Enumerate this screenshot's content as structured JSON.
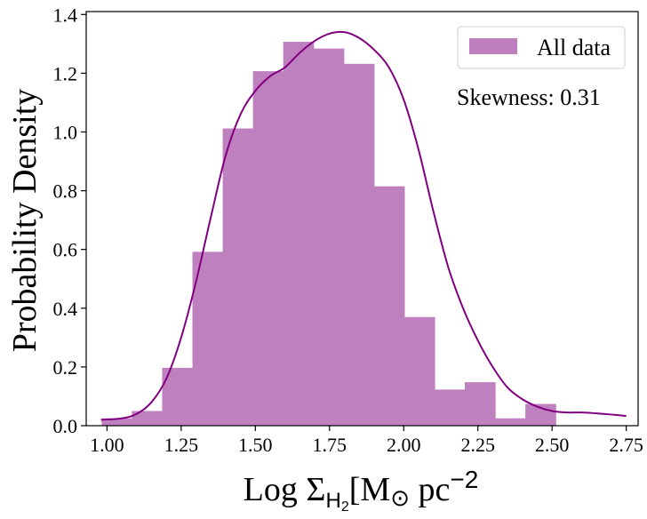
{
  "chart_data": {
    "type": "bar",
    "subtype": "histogram-with-kde",
    "xlabel": "Log Σ",
    "xlabel_sub": "H",
    "xlabel_subsub": "2",
    "xlabel_bracket_open": "[M",
    "xlabel_sun": "⊙",
    "xlabel_unit": " pc",
    "xlabel_exp": "−2",
    "xlabel_bracket_close": "]",
    "ylabel": "Probability Density",
    "xlim": [
      0.93,
      2.79
    ],
    "ylim": [
      0.0,
      1.41
    ],
    "x_ticks": [
      1.0,
      1.25,
      1.5,
      1.75,
      2.0,
      2.25,
      2.5,
      2.75
    ],
    "x_tick_labels": [
      "1.00",
      "1.25",
      "1.50",
      "1.75",
      "2.00",
      "2.25",
      "2.50",
      "2.75"
    ],
    "y_ticks": [
      0.0,
      0.2,
      0.4,
      0.6,
      0.8,
      1.0,
      1.2,
      1.4
    ],
    "y_tick_labels": [
      "0.0",
      "0.2",
      "0.4",
      "0.6",
      "0.8",
      "1.0",
      "1.2",
      "1.4"
    ],
    "bins": [
      {
        "x0": 0.982,
        "x1": 1.084,
        "value": 0.025
      },
      {
        "x0": 1.084,
        "x1": 1.186,
        "value": 0.05
      },
      {
        "x0": 1.186,
        "x1": 1.288,
        "value": 0.197
      },
      {
        "x0": 1.288,
        "x1": 1.39,
        "value": 0.592
      },
      {
        "x0": 1.39,
        "x1": 1.492,
        "value": 1.012
      },
      {
        "x0": 1.492,
        "x1": 1.594,
        "value": 1.207
      },
      {
        "x0": 1.594,
        "x1": 1.696,
        "value": 1.307
      },
      {
        "x0": 1.696,
        "x1": 1.798,
        "value": 1.284
      },
      {
        "x0": 1.798,
        "x1": 1.9,
        "value": 1.232
      },
      {
        "x0": 1.9,
        "x1": 2.002,
        "value": 0.815
      },
      {
        "x0": 2.002,
        "x1": 2.104,
        "value": 0.37
      },
      {
        "x0": 2.104,
        "x1": 2.206,
        "value": 0.123
      },
      {
        "x0": 2.206,
        "x1": 2.308,
        "value": 0.148
      },
      {
        "x0": 2.308,
        "x1": 2.41,
        "value": 0.025
      },
      {
        "x0": 2.41,
        "x1": 2.512,
        "value": 0.074
      }
    ],
    "kde": {
      "x": [
        0.98,
        1.05,
        1.1,
        1.15,
        1.2,
        1.25,
        1.3,
        1.35,
        1.4,
        1.45,
        1.5,
        1.55,
        1.6,
        1.65,
        1.7,
        1.75,
        1.8,
        1.85,
        1.9,
        1.95,
        2.0,
        2.05,
        2.1,
        2.15,
        2.2,
        2.25,
        2.3,
        2.35,
        2.4,
        2.45,
        2.5,
        2.55,
        2.6,
        2.65,
        2.7,
        2.75
      ],
      "y": [
        0.02,
        0.025,
        0.04,
        0.08,
        0.16,
        0.3,
        0.49,
        0.71,
        0.92,
        1.06,
        1.14,
        1.19,
        1.22,
        1.27,
        1.31,
        1.335,
        1.34,
        1.32,
        1.28,
        1.22,
        1.11,
        0.94,
        0.73,
        0.54,
        0.4,
        0.29,
        0.2,
        0.13,
        0.09,
        0.065,
        0.05,
        0.045,
        0.045,
        0.042,
        0.038,
        0.033
      ]
    },
    "series": [
      {
        "name": "All data",
        "color": "#bf7fbf"
      }
    ],
    "bar_color": "#bf80bf",
    "kde_color": "#800080",
    "legend_position": "top-right",
    "annotation": "Skewness: 0.31",
    "grid": false
  }
}
